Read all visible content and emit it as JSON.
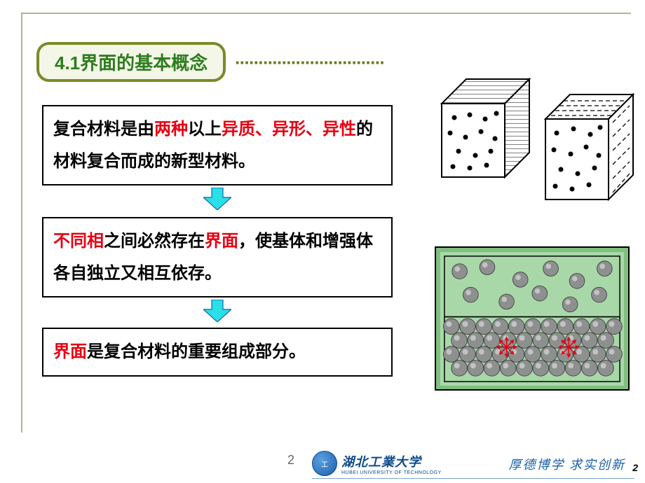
{
  "heading": {
    "text": "4.1界面的基本概念",
    "text_color": "#2e7d1e",
    "border_color": "#7a8a2a",
    "bg_color": "#f4f6e8",
    "dot_color": "#6b7a1f"
  },
  "textboxes": {
    "box1": {
      "pre1": "复合材料是由",
      "red1": "两种",
      "mid1": "以上",
      "red2": "异质、异形、异性",
      "post1": "的材料复合而成的新型材料。"
    },
    "box2": {
      "red1": "不同相",
      "mid1": "之间必然存在",
      "red2": "界面",
      "post1": "，使基体和增强体各自独立又相互依存。"
    },
    "box3": {
      "red1": "界面",
      "post1": "是复合材料的重要组成部分。"
    }
  },
  "arrow": {
    "fill": "#29e0e8",
    "stroke": "#1b5fa8"
  },
  "composite": {
    "outer_bg": "#7fbf7f",
    "inner_bg": "#a8d8a8",
    "sphere_fill": "#8e9090",
    "sphere_light": "#d8d8d8",
    "red_arrow": "#e60012"
  },
  "footer": {
    "page_center": "2",
    "page_right": "2",
    "uni_cn": "湖北工業大学",
    "uni_en": "HUBEI UNIVERSITY OF TECHNOLOGY",
    "motto": "厚德博学  求实创新"
  }
}
